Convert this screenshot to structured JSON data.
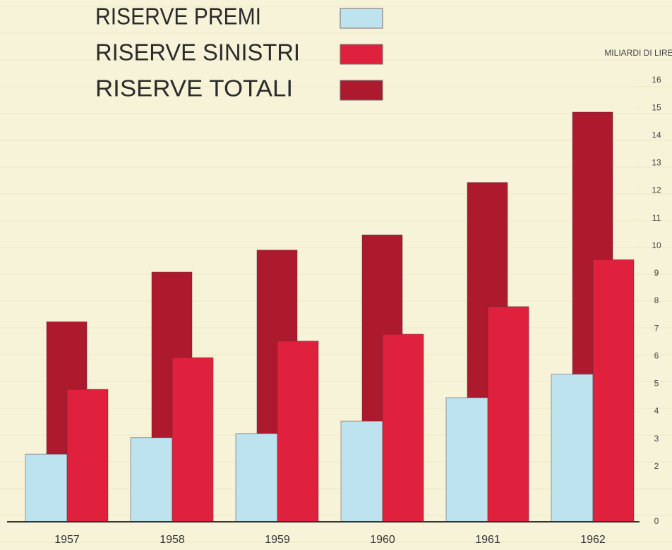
{
  "chart_data": {
    "type": "bar",
    "y_label": "MILIARDI DI LIRE",
    "categories": [
      "1957",
      "1958",
      "1959",
      "1960",
      "1961",
      "1962"
    ],
    "series": [
      {
        "name": "RISERVE PREMI",
        "color": "#bde3ef",
        "values": [
          2.45,
          3.05,
          3.2,
          3.65,
          4.5,
          5.35
        ]
      },
      {
        "name": "RISERVE SINISTRI",
        "color": "#e0213d",
        "values": [
          4.8,
          5.95,
          6.55,
          6.8,
          7.8,
          9.5
        ]
      },
      {
        "name": "RISERVE TOTALI",
        "color": "#ad1a2e",
        "values": [
          7.25,
          9.05,
          9.85,
          10.4,
          12.3,
          14.85
        ]
      }
    ],
    "ylim": [
      0,
      16
    ],
    "yticks": [
      0,
      2,
      3,
      4,
      5,
      6,
      7,
      8,
      9,
      10,
      11,
      12,
      13,
      14,
      15,
      16
    ],
    "legend": "top-left"
  }
}
